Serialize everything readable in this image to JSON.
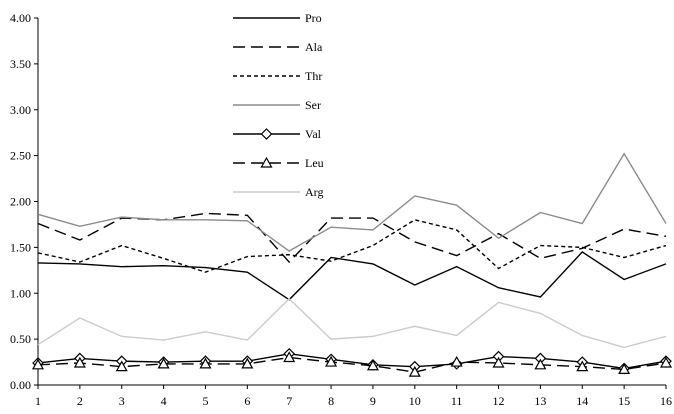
{
  "chart_data": {
    "type": "line",
    "title": "",
    "xlabel": "",
    "ylabel": "",
    "x": [
      1,
      2,
      3,
      4,
      5,
      6,
      7,
      8,
      9,
      10,
      11,
      12,
      13,
      14,
      15,
      16
    ],
    "x_tick_labels": [
      "1",
      "2",
      "3",
      "4",
      "5",
      "6",
      "7",
      "8",
      "9",
      "10",
      "11",
      "12",
      "13",
      "14",
      "15",
      "16"
    ],
    "ylim": [
      0,
      4
    ],
    "y_tick_labels": [
      "0.00",
      "0.50",
      "1.00",
      "1.50",
      "2.00",
      "2.50",
      "3.00",
      "3.50",
      "4.00"
    ],
    "grid": false,
    "legend_position": "top-center",
    "series": [
      {
        "name": "Pro",
        "color": "#000000",
        "dash": "solid",
        "marker": "none",
        "values": [
          1.33,
          1.32,
          1.29,
          1.3,
          1.28,
          1.23,
          0.93,
          1.39,
          1.32,
          1.09,
          1.29,
          1.06,
          0.96,
          1.45,
          1.15,
          1.32
        ]
      },
      {
        "name": "Ala",
        "color": "#000000",
        "dash": "long-dash",
        "marker": "none",
        "values": [
          1.76,
          1.58,
          1.82,
          1.8,
          1.87,
          1.85,
          1.34,
          1.82,
          1.82,
          1.56,
          1.41,
          1.65,
          1.38,
          1.49,
          1.7,
          1.62
        ]
      },
      {
        "name": "Thr",
        "color": "#000000",
        "dash": "short-dash",
        "marker": "none",
        "values": [
          1.44,
          1.34,
          1.52,
          1.38,
          1.23,
          1.4,
          1.42,
          1.35,
          1.52,
          1.8,
          1.69,
          1.27,
          1.52,
          1.5,
          1.39,
          1.52
        ]
      },
      {
        "name": "Ser",
        "color": "#8c8c8c",
        "dash": "solid",
        "marker": "none",
        "values": [
          1.86,
          1.73,
          1.83,
          1.8,
          1.8,
          1.79,
          1.46,
          1.72,
          1.69,
          2.06,
          1.96,
          1.6,
          1.88,
          1.76,
          2.52,
          1.76
        ]
      },
      {
        "name": "Val",
        "color": "#000000",
        "dash": "solid",
        "marker": "diamond",
        "values": [
          0.24,
          0.29,
          0.26,
          0.25,
          0.26,
          0.26,
          0.34,
          0.28,
          0.22,
          0.2,
          0.23,
          0.31,
          0.29,
          0.25,
          0.18,
          0.26
        ]
      },
      {
        "name": "Leu",
        "color": "#000000",
        "dash": "long-dash",
        "marker": "triangle",
        "values": [
          0.22,
          0.24,
          0.2,
          0.23,
          0.23,
          0.23,
          0.3,
          0.25,
          0.21,
          0.14,
          0.25,
          0.24,
          0.22,
          0.2,
          0.17,
          0.24
        ]
      },
      {
        "name": "Arg",
        "color": "#cccccc",
        "dash": "solid",
        "marker": "none",
        "values": [
          0.44,
          0.73,
          0.53,
          0.49,
          0.58,
          0.49,
          0.94,
          0.5,
          0.53,
          0.64,
          0.54,
          0.9,
          0.78,
          0.54,
          0.41,
          0.53
        ]
      }
    ]
  }
}
